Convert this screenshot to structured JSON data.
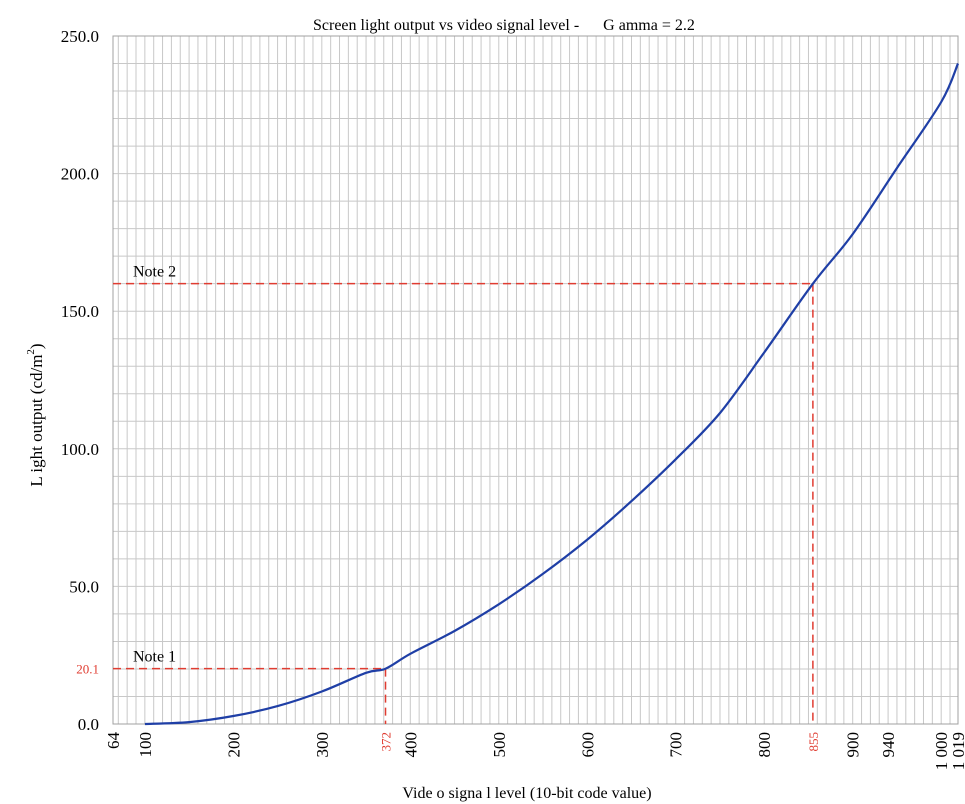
{
  "chart_data": {
    "type": "line",
    "title": "Screen light output vs video signal level -      G amma = 2.2",
    "xlabel": "Vide o signa l level (10-bit code value)",
    "ylabel": "L ight output (cd/m",
    "ylabel_sup": "2",
    "ylabel_tail": ")",
    "xlim": [
      64,
      1019
    ],
    "ylim": [
      0,
      250
    ],
    "x_minor_step": 10,
    "y_minor_step": 10,
    "grid": true,
    "x_ticks": [
      {
        "value": 64,
        "label": "64"
      },
      {
        "value": 100,
        "label": "100"
      },
      {
        "value": 200,
        "label": "200"
      },
      {
        "value": 300,
        "label": "300"
      },
      {
        "value": 400,
        "label": "400"
      },
      {
        "value": 500,
        "label": "500"
      },
      {
        "value": 600,
        "label": "600"
      },
      {
        "value": 700,
        "label": "700"
      },
      {
        "value": 800,
        "label": "800"
      },
      {
        "value": 900,
        "label": "900"
      },
      {
        "value": 940,
        "label": "940"
      },
      {
        "value": 1000,
        "label": "1 000"
      },
      {
        "value": 1019,
        "label": "1 019"
      }
    ],
    "y_ticks": [
      {
        "value": 0,
        "label": "0.0"
      },
      {
        "value": 50,
        "label": "50.0"
      },
      {
        "value": 100,
        "label": "100.0"
      },
      {
        "value": 150,
        "label": "150.0"
      },
      {
        "value": 200,
        "label": "200.0"
      },
      {
        "value": 250,
        "label": "250.0"
      }
    ],
    "series": [
      {
        "color": "#1f3fa6",
        "x": [
          100,
          150,
          200,
          250,
          300,
          350,
          372,
          400,
          450,
          500,
          550,
          600,
          650,
          700,
          750,
          800,
          855,
          900,
          950,
          1000,
          1019
        ],
        "y": [
          0.0,
          0.7,
          2.9,
          6.5,
          11.8,
          18.6,
          20.1,
          25.5,
          33.8,
          43.5,
          54.6,
          67.0,
          81.0,
          96.2,
          113.0,
          135.0,
          160.0,
          178.0,
          202.0,
          226.0,
          240.0
        ]
      }
    ],
    "annotations": [
      {
        "text": "Note 1",
        "x": 372,
        "y": 20.1,
        "x_label": "372",
        "y_label": "20.1",
        "color": "#e03c31"
      },
      {
        "text": "Note 2",
        "x": 855,
        "y": 160,
        "x_label": "855",
        "color": "#e03c31"
      }
    ]
  }
}
